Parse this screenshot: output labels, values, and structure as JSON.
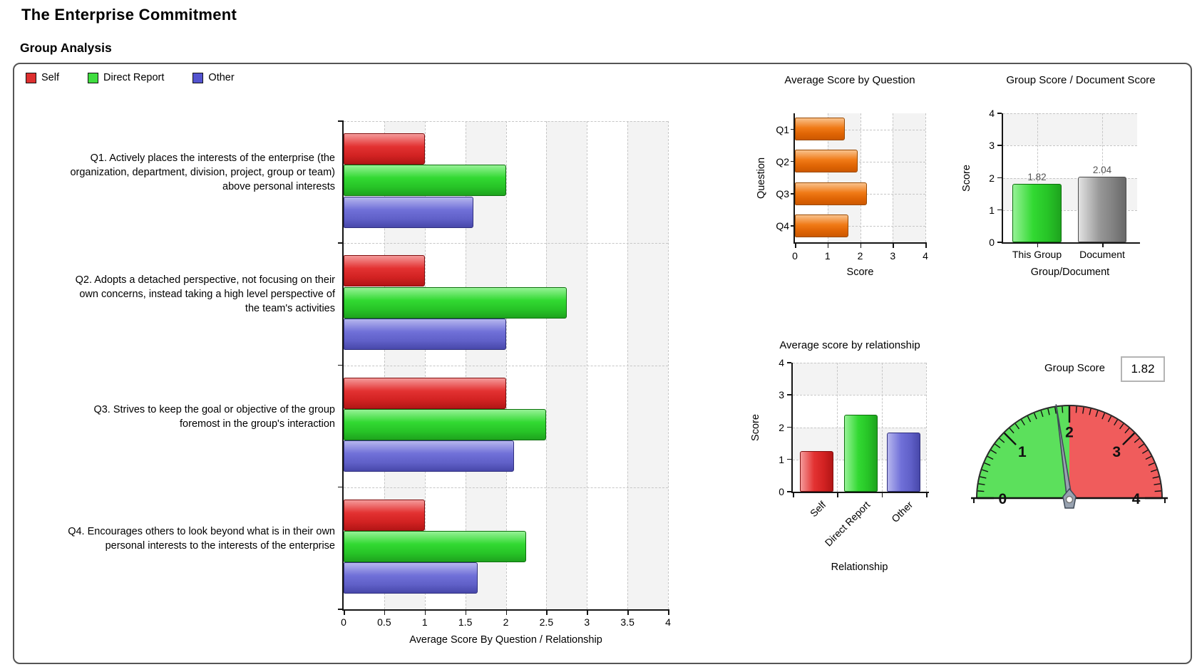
{
  "page": {
    "title": "The Enterprise Commitment",
    "section": "Group Analysis"
  },
  "legend": {
    "items": [
      {
        "label": "Self",
        "color": "#dd2f2f"
      },
      {
        "label": "Direct Report",
        "color": "#3fdd3f"
      },
      {
        "label": "Other",
        "color": "#5353cf"
      }
    ]
  },
  "colors": {
    "self_red": "#dd2f2f",
    "direct_report_green": "#3fdd3f",
    "other_blue": "#5353cf",
    "question_orange": "#ee7512",
    "document_gray": "#8f8f8f",
    "group_score_green": "#2ee432",
    "gauge_green": "#5ce05c",
    "gauge_red": "#f05c5c"
  },
  "chart_data": [
    {
      "id": "avg-score-by-question-relationship",
      "type": "bar",
      "orientation": "horizontal",
      "title": "",
      "xlabel": "Average Score By Question / Relationship",
      "xlim": [
        0,
        4
      ],
      "xticks": [
        "0",
        "0.5",
        "1",
        "1.5",
        "2",
        "2.5",
        "3",
        "3.5",
        "4"
      ],
      "grid": "dashed",
      "legend_position": "top-left",
      "categories": [
        {
          "id": "Q1",
          "lines": [
            "Q1. Actively places the interests of the enterprise (the",
            "organization, department, division, project, group or team)",
            "above personal interests"
          ]
        },
        {
          "id": "Q2",
          "lines": [
            "Q2. Adopts a detached perspective, not focusing on their",
            "own concerns, instead taking a high level perspective of",
            "the team's activities"
          ]
        },
        {
          "id": "Q3",
          "lines": [
            "Q3. Strives to keep the goal or objective of the group",
            "foremost in the group's interaction"
          ]
        },
        {
          "id": "Q4",
          "lines": [
            "Q4. Encourages others to look beyond what is in their own",
            "personal interests to the interests of the enterprise"
          ]
        }
      ],
      "series": [
        {
          "name": "Self",
          "color": "#dd2f2f",
          "values": [
            1.0,
            1.0,
            2.0,
            1.0
          ]
        },
        {
          "name": "Direct Report",
          "color": "#3fdd3f",
          "values": [
            2.0,
            2.75,
            2.5,
            2.25
          ]
        },
        {
          "name": "Other",
          "color": "#5353cf",
          "values": [
            1.6,
            2.0,
            2.1,
            1.65
          ]
        }
      ]
    },
    {
      "id": "avg-score-by-question",
      "type": "bar",
      "orientation": "horizontal",
      "title": "Average Score by Question",
      "xlabel": "Score",
      "ylabel": "Question",
      "xlim": [
        0,
        4
      ],
      "xticks": [
        "0",
        "1",
        "2",
        "3",
        "4"
      ],
      "grid": "dashed",
      "categories": [
        "Q1",
        "Q2",
        "Q3",
        "Q4"
      ],
      "values": [
        1.53,
        1.92,
        2.2,
        1.63
      ],
      "color": "#ee7512"
    },
    {
      "id": "group-score-document-score",
      "type": "bar",
      "orientation": "vertical",
      "title": "Group Score / Document Score",
      "xlabel": "Group/Document",
      "ylabel": "Score",
      "ylim": [
        0,
        4
      ],
      "yticks": [
        "0",
        "1",
        "2",
        "3",
        "4"
      ],
      "grid": "dashed",
      "categories": [
        "This Group",
        "Document"
      ],
      "values": [
        1.82,
        2.04
      ],
      "value_labels": [
        "1.82",
        "2.04"
      ],
      "colors": [
        "#2ee432",
        "#8f8f8f"
      ]
    },
    {
      "id": "avg-score-by-relationship",
      "type": "bar",
      "orientation": "vertical",
      "title": "Average score by relationship",
      "xlabel": "Relationship",
      "ylabel": "Score",
      "ylim": [
        0,
        4
      ],
      "yticks": [
        "0",
        "1",
        "2",
        "3",
        "4"
      ],
      "grid": "dashed",
      "categories": [
        "Self",
        "Direct Report",
        "Other"
      ],
      "values": [
        1.25,
        2.38,
        1.84
      ],
      "colors": [
        "#dd2f2f",
        "#3fdd3f",
        "#5353cf"
      ]
    },
    {
      "id": "group-score-gauge",
      "type": "gauge",
      "title": "Group Score",
      "value": 1.82,
      "value_display": "1.82",
      "range": [
        0,
        4
      ],
      "tick_labels": [
        "0",
        "1",
        "2",
        "3",
        "4"
      ],
      "minor_tick_step": 0.1,
      "segments": [
        {
          "from": 0,
          "to": 2,
          "color": "#5ce05c"
        },
        {
          "from": 2,
          "to": 4,
          "color": "#f05c5c"
        }
      ]
    }
  ]
}
